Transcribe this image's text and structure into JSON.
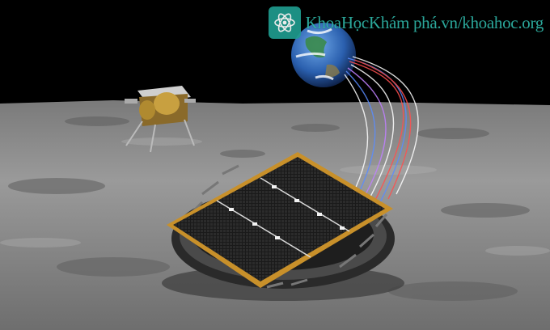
{
  "watermark": {
    "text": "KhoaHọcKhám phá.vn/khoahoc.org",
    "logo_icon": "atom-logo-icon",
    "color": "#2fb6a8"
  },
  "scene": {
    "sky_color": "#000000",
    "ground_color": "#8e8e8e",
    "earth_colors": [
      "#2a5fae",
      "#3a8a4a",
      "#ffffff"
    ],
    "panel_color": "#1c1c1c",
    "frame_color": "#c8902a",
    "beam_colors": [
      "#ff5050",
      "#5a8cff",
      "#ffffff",
      "#c080ff"
    ]
  }
}
